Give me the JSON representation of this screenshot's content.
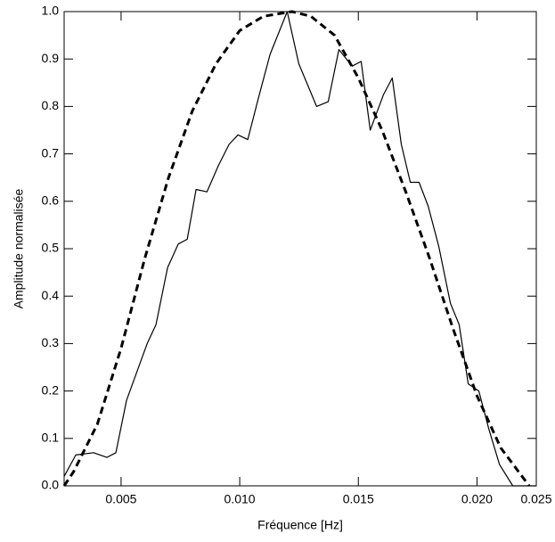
{
  "chart_data": {
    "type": "line",
    "x_label": "Fréquence [Hz]",
    "y_label": "Amplitude normalisée",
    "xlim": [
      0.0026,
      0.0225
    ],
    "ylim": [
      0,
      1
    ],
    "xticks": [
      0.005,
      {
        "value": 0.01,
        "label": "0.010"
      },
      0.015,
      {
        "value": 0.02,
        "label": "0.020"
      },
      0.025
    ],
    "yticks": [
      {
        "value": 0,
        "label": "0.0"
      },
      0.1,
      0.2,
      0.3,
      0.4,
      0.5,
      0.6,
      0.7,
      0.8,
      0.9,
      {
        "value": 1,
        "label": "1.0"
      }
    ],
    "series": [
      {
        "color": "#000000",
        "linestyle": "solid",
        "x": [
          0.0026,
          0.00309,
          0.00384,
          0.0044,
          0.00478,
          0.00523,
          0.0061,
          0.00647,
          0.00696,
          0.00741,
          0.00779,
          0.00816,
          0.00862,
          0.0091,
          0.00955,
          0.00993,
          0.01034,
          0.0108,
          0.01128,
          0.012,
          0.01249,
          0.01324,
          0.01373,
          0.01418,
          0.01474,
          0.01512,
          0.0155,
          0.01606,
          0.01643,
          0.01681,
          0.01719,
          0.01756,
          0.01794,
          0.01839,
          0.01888,
          0.01925,
          0.01963,
          0.02008,
          0.0205,
          0.02095,
          0.02151,
          0.0225
        ],
        "values": [
          0.02,
          0.065,
          0.07,
          0.06,
          0.07,
          0.18,
          0.3,
          0.34,
          0.46,
          0.51,
          0.52,
          0.625,
          0.62,
          0.675,
          0.72,
          0.74,
          0.73,
          0.82,
          0.91,
          1.0,
          0.89,
          0.8,
          0.81,
          0.92,
          0.885,
          0.895,
          0.75,
          0.825,
          0.86,
          0.72,
          0.64,
          0.64,
          0.59,
          0.505,
          0.385,
          0.34,
          0.215,
          0.2,
          0.12,
          0.045,
          0,
          0
        ]
      },
      {
        "color": "#000000",
        "linestyle": "dashed",
        "x": [
          0.0026,
          0.003,
          0.004,
          0.005,
          0.006,
          0.007,
          0.008,
          0.009,
          0.01,
          0.011,
          0.0122,
          0.013,
          0.014,
          0.015,
          0.016,
          0.017,
          0.018,
          0.019,
          0.02,
          0.021,
          0.0222
        ],
        "values": [
          0,
          0.03,
          0.13,
          0.29,
          0.48,
          0.65,
          0.79,
          0.89,
          0.96,
          0.99,
          1.0,
          0.99,
          0.95,
          0.86,
          0.75,
          0.62,
          0.48,
          0.33,
          0.19,
          0.08,
          0
        ]
      }
    ]
  }
}
